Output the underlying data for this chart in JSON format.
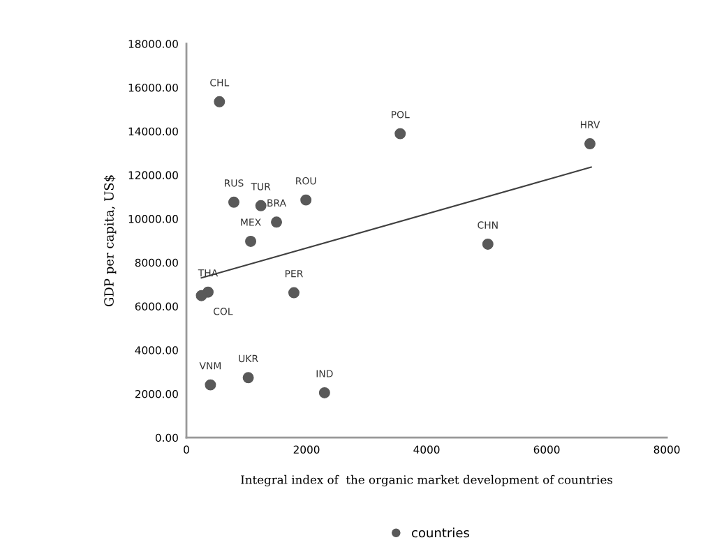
{
  "chart_data": {
    "type": "scatter",
    "xlabel": "Integral index of  the organic market development of countries",
    "ylabel": "GDP per capita, US$",
    "series": [
      {
        "name": "countries",
        "color": "#595959",
        "marker": "circle",
        "x": [
          550,
          3560,
          6720,
          790,
          1240,
          1990,
          1500,
          1070,
          5020,
          360,
          250,
          1790,
          400,
          1030,
          2300
        ],
        "values": [
          15350,
          13890,
          13430,
          10760,
          10600,
          10860,
          9850,
          8970,
          8840,
          6650,
          6490,
          6620,
          2410,
          2740,
          2050
        ]
      },
      {
        "type": "line",
        "color": "#404040",
        "x": [
          250,
          6740
        ],
        "values": [
          7300,
          12360
        ]
      }
    ],
    "annotations": [
      {
        "text": "CHL",
        "x": 550,
        "y": 15350
      },
      {
        "text": "POL",
        "x": 3560,
        "y": 13890
      },
      {
        "text": "HRV",
        "x": 6720,
        "y": 13430
      },
      {
        "text": "RUS",
        "x": 790,
        "y": 10760
      },
      {
        "text": "TUR",
        "x": 1240,
        "y": 10600
      },
      {
        "text": "ROU",
        "x": 1990,
        "y": 10860
      },
      {
        "text": "BRA",
        "x": 1500,
        "y": 9850
      },
      {
        "text": "MEX",
        "x": 1070,
        "y": 8970
      },
      {
        "text": "CHN",
        "x": 5020,
        "y": 8840
      },
      {
        "text": "THA",
        "x": 360,
        "y": 6650
      },
      {
        "text": "COL",
        "x": 250,
        "y": 6490
      },
      {
        "text": "PER",
        "x": 1790,
        "y": 6620
      },
      {
        "text": "VNM",
        "x": 400,
        "y": 2410
      },
      {
        "text": "UKR",
        "x": 1030,
        "y": 2740
      },
      {
        "text": "IND",
        "x": 2300,
        "y": 2050
      }
    ],
    "xlim": [
      0,
      8000
    ],
    "xticks": [
      0,
      2000,
      4000,
      6000,
      8000
    ],
    "ylim": [
      0,
      18000
    ],
    "yticks": [
      {
        "value": 0,
        "label": "0.00"
      },
      {
        "value": 2000,
        "label": "2000.00"
      },
      {
        "value": 4000,
        "label": "4000.00"
      },
      {
        "value": 6000,
        "label": "6000.00"
      },
      {
        "value": 8000,
        "label": "8000.00"
      },
      {
        "value": 10000,
        "label": "10000.00"
      },
      {
        "value": 12000,
        "label": "12000.00"
      },
      {
        "value": 14000,
        "label": "14000.00"
      },
      {
        "value": 16000,
        "label": "16000.00"
      },
      {
        "value": 18000,
        "label": "18000.00"
      }
    ],
    "grid": false,
    "legend": "bottom"
  }
}
